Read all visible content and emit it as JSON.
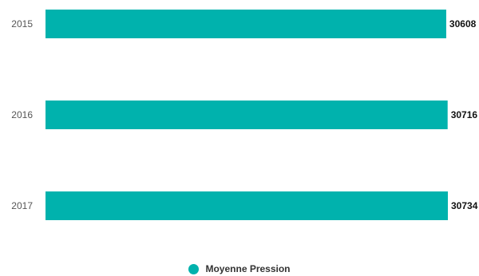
{
  "chart_data": {
    "type": "bar",
    "orientation": "horizontal",
    "categories": [
      "2015",
      "2016",
      "2017"
    ],
    "series": [
      {
        "name": "Moyenne Pression",
        "values": [
          30608,
          30716,
          30734
        ],
        "color": "#00b2ad"
      }
    ],
    "xlim": [
      0,
      30734
    ],
    "data_labels": true,
    "grid": false,
    "legend_position": "bottom"
  }
}
